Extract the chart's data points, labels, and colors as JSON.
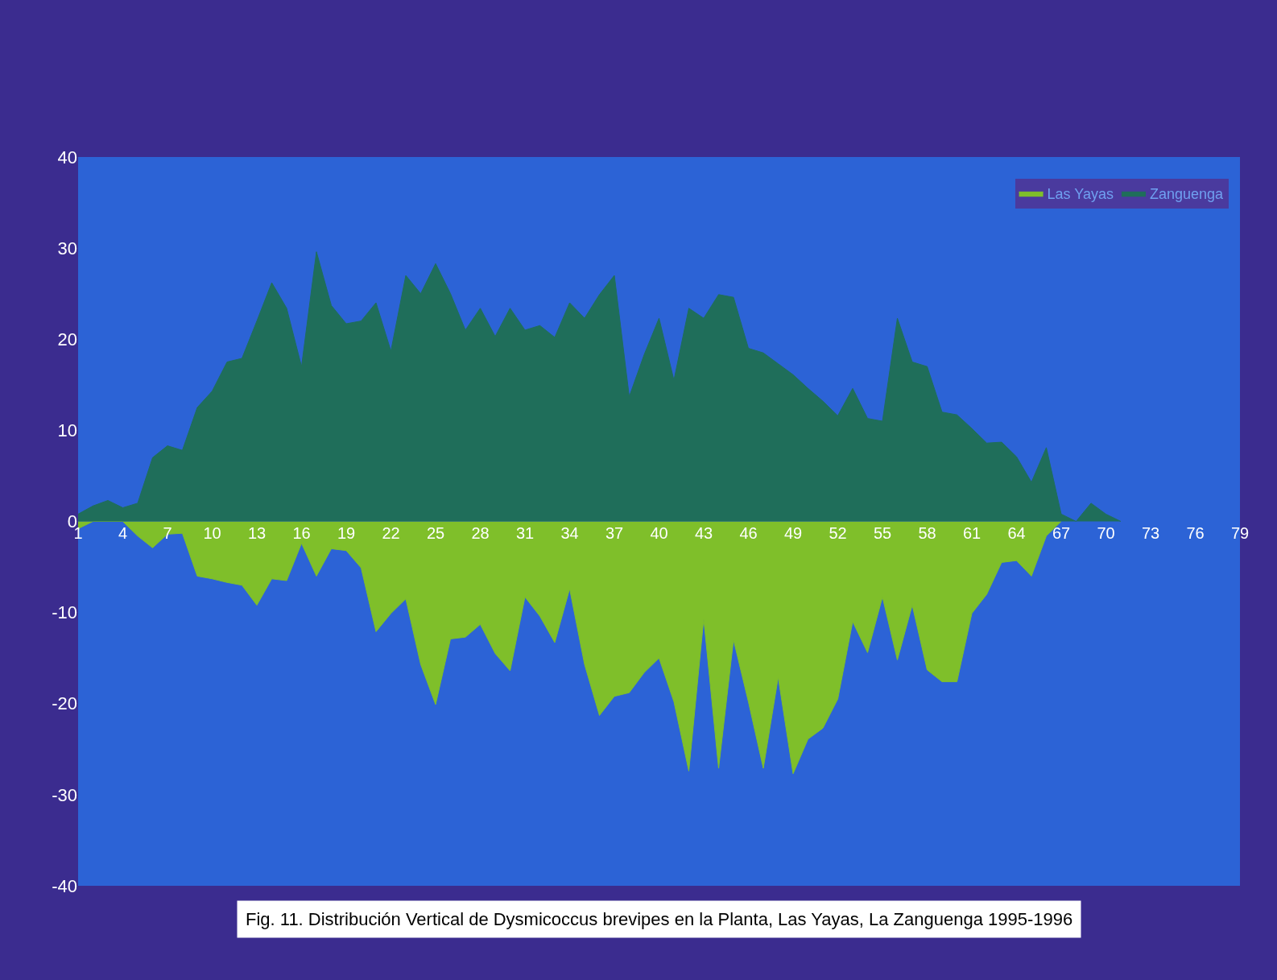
{
  "chart_data": {
    "type": "area",
    "title": "Fig. 11. Distribución Vertical de Dysmicoccus brevipes en la Planta, Las Yayas, La Zanguenga 1995-1996",
    "categories": [
      "1",
      null,
      null,
      "4",
      null,
      null,
      "7",
      null,
      null,
      "10",
      null,
      null,
      "13",
      null,
      null,
      "16",
      null,
      null,
      "19",
      null,
      null,
      "22",
      null,
      null,
      "25",
      null,
      null,
      "28",
      null,
      null,
      "31",
      null,
      null,
      "34",
      null,
      null,
      "37",
      null,
      null,
      "40",
      null,
      null,
      "43",
      null,
      null,
      "46",
      null,
      null,
      "49",
      null,
      null,
      "52",
      null,
      null,
      "55",
      null,
      null,
      "58",
      null,
      null,
      "61",
      null,
      null,
      "64",
      null,
      null,
      "67",
      null,
      null,
      "70",
      null,
      null,
      "73",
      null,
      null,
      "76",
      null,
      null,
      "79"
    ],
    "series": [
      {
        "name": "Las Yayas",
        "color": "#7fbf2a",
        "values": [
          -0.8,
          0,
          0,
          0,
          -1.6,
          -2.9,
          -1.4,
          -1.3,
          -6,
          -6.3,
          -6.7,
          -7,
          -9.2,
          -6.3,
          -6.5,
          -2.4,
          -6,
          -3,
          -3.2,
          -5.1,
          -12.1,
          -10.1,
          -8.5,
          -15.7,
          -20.1,
          -12.9,
          -12.7,
          -11.3,
          -14.5,
          -16.4,
          -8.3,
          -10.4,
          -13.3,
          -7.4,
          -15.7,
          -21.3,
          -19.2,
          -18.8,
          -16.6,
          -15,
          -19.8,
          -27.4,
          -10.7,
          -27.1,
          -13,
          -19.8,
          -27.1,
          -17.1,
          -27.7,
          -23.9,
          -22.7,
          -19.5,
          -11,
          -14.4,
          -8.3,
          -15.2,
          -9.2,
          -16.3,
          -17.6,
          -17.6,
          -10.1,
          -8,
          -4.5,
          -4.3,
          -6,
          -1.6,
          0,
          null,
          null,
          null,
          null,
          null,
          null,
          null,
          null,
          null,
          null,
          null,
          null
        ]
      },
      {
        "name": "Zanguenga",
        "color": "#1f6e5a",
        "values": [
          0.8,
          1.7,
          2.3,
          1.5,
          2,
          7,
          8.3,
          7.8,
          12.5,
          14.3,
          17.5,
          17.9,
          22,
          26.2,
          23.4,
          17,
          29.6,
          23.7,
          21.7,
          22,
          24,
          18.7,
          27,
          25,
          28.3,
          25,
          21,
          23.4,
          20.3,
          23.4,
          21,
          21.5,
          20.2,
          24,
          22.3,
          24.9,
          27,
          13.7,
          18.3,
          22.3,
          15.5,
          23.4,
          22.3,
          24.9,
          24.6,
          19,
          18.5,
          17.3,
          16.1,
          14.6,
          13.2,
          11.6,
          14.6,
          11.3,
          11,
          22.3,
          17.5,
          17,
          12,
          11.7,
          10.2,
          8.6,
          8.7,
          7.1,
          4.3,
          8.1,
          0.8,
          0,
          2,
          0.8,
          0,
          null,
          null,
          null,
          null,
          null,
          null,
          null,
          null
        ]
      }
    ],
    "ylim": [
      -40,
      40
    ],
    "yticks": [
      -40,
      -30,
      -20,
      -10,
      0,
      10,
      20,
      30,
      40
    ],
    "grid": false,
    "legend": "top right"
  }
}
